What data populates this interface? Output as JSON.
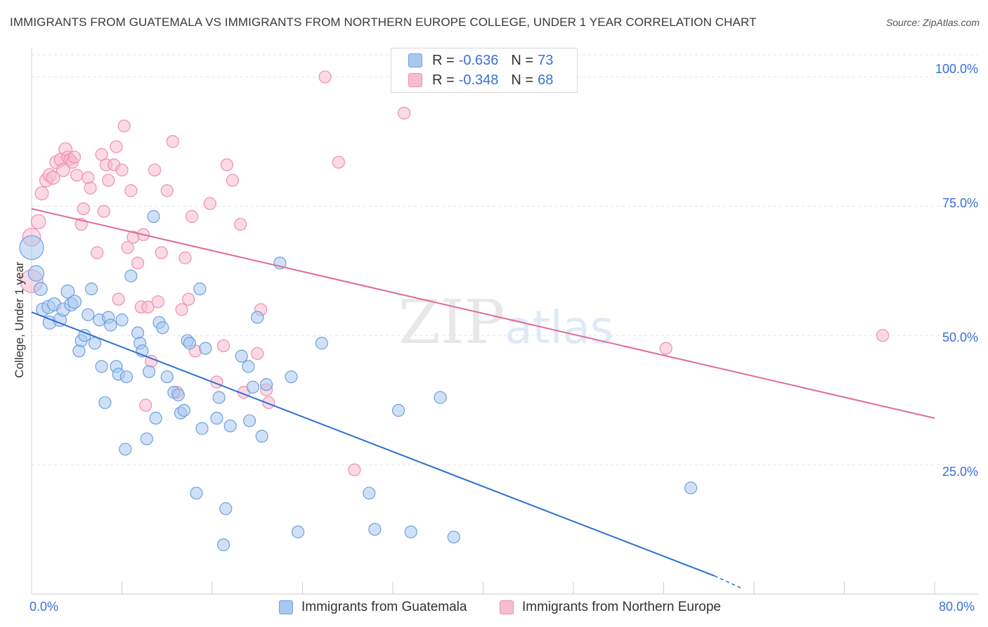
{
  "title": "IMMIGRANTS FROM GUATEMALA VS IMMIGRANTS FROM NORTHERN EUROPE COLLEGE, UNDER 1 YEAR CORRELATION CHART",
  "source": "Source: ZipAtlas.com",
  "watermark": "ZIPatlas",
  "colors": {
    "blue_fill": "#a9c8f0",
    "blue_stroke": "#6f9fe0",
    "blue_line": "#2f6fd0",
    "pink_fill": "#f7bcd0",
    "pink_stroke": "#ec8fb0",
    "pink_line": "#e06a98",
    "axis_text": "#3a6fd8",
    "grid": "#e6e6e6"
  },
  "legend": {
    "rows": [
      {
        "r_label": "R =",
        "r_value": "-0.636",
        "n_label": "N =",
        "n_value": "73"
      },
      {
        "r_label": "R =",
        "r_value": "-0.348",
        "n_label": "N =",
        "n_value": "68"
      }
    ]
  },
  "bottom_legend": [
    "Immigrants from Guatemala",
    "Immigrants from Northern Europe"
  ],
  "chart_data": {
    "type": "scatter",
    "title": "IMMIGRANTS FROM GUATEMALA VS IMMIGRANTS FROM NORTHERN EUROPE COLLEGE, UNDER 1 YEAR CORRELATION CHART",
    "xlabel": "",
    "ylabel": "College, Under 1 year",
    "xlim": [
      0,
      80
    ],
    "ylim": [
      0,
      104
    ],
    "x_tick_labels": [
      "0.0%",
      "80.0%"
    ],
    "y_tick_labels": [
      "25.0%",
      "50.0%",
      "75.0%",
      "100.0%"
    ],
    "y_ticks": [
      25,
      50,
      75,
      100
    ],
    "grid": "horizontal dashed",
    "legend_position": "top-center",
    "series": [
      {
        "name": "Immigrants from Guatemala",
        "color": "blue",
        "trend": {
          "x": [
            0,
            60.5
          ],
          "y": [
            54.5,
            3.5
          ],
          "dashed_extension_to": [
            63,
            1.0
          ]
        },
        "points": [
          [
            0.0,
            67.0,
            2
          ],
          [
            0.4,
            62.0,
            1.3
          ],
          [
            0.8,
            59.0,
            1.1
          ],
          [
            1.0,
            55.0,
            1.1
          ],
          [
            1.5,
            55.5,
            1.1
          ],
          [
            1.6,
            52.5,
            1.1
          ],
          [
            2.0,
            56.0,
            1.1
          ],
          [
            2.5,
            53.0,
            1.1
          ],
          [
            2.8,
            55.0,
            1.1
          ],
          [
            3.2,
            58.5,
            1.1
          ],
          [
            3.5,
            56.0,
            1.1
          ],
          [
            3.8,
            56.5,
            1.1
          ],
          [
            4.2,
            47.0,
            1.0
          ],
          [
            4.4,
            49.0,
            1.0
          ],
          [
            4.7,
            50.0,
            1.0
          ],
          [
            5.0,
            54.0,
            1.0
          ],
          [
            5.3,
            59.0,
            1.0
          ],
          [
            5.6,
            48.5,
            1.0
          ],
          [
            6.0,
            53.0,
            1.0
          ],
          [
            6.2,
            44.0,
            1.0
          ],
          [
            6.5,
            37.0,
            1.0
          ],
          [
            6.8,
            53.5,
            1.0
          ],
          [
            7.0,
            52.0,
            1.0
          ],
          [
            7.5,
            44.0,
            1.0
          ],
          [
            7.7,
            42.5,
            1.0
          ],
          [
            8.0,
            53.0,
            1.0
          ],
          [
            8.3,
            28.0,
            1.0
          ],
          [
            8.4,
            42.0,
            1.0
          ],
          [
            8.8,
            61.5,
            1.0
          ],
          [
            9.4,
            50.5,
            1.0
          ],
          [
            9.6,
            48.5,
            1.0
          ],
          [
            9.8,
            47.0,
            1.0
          ],
          [
            10.2,
            30.0,
            1.0
          ],
          [
            10.4,
            43.0,
            1.0
          ],
          [
            10.8,
            73.0,
            1.0
          ],
          [
            11.0,
            34.0,
            1.0
          ],
          [
            11.3,
            52.5,
            1.0
          ],
          [
            11.6,
            51.5,
            1.0
          ],
          [
            12.0,
            42.0,
            1.0
          ],
          [
            12.6,
            39.0,
            1.0
          ],
          [
            13.0,
            38.5,
            1.0
          ],
          [
            13.2,
            35.0,
            1.0
          ],
          [
            13.5,
            35.5,
            1.0
          ],
          [
            13.8,
            49.0,
            1.0
          ],
          [
            14.0,
            48.5,
            1.0
          ],
          [
            14.6,
            19.5,
            1.0
          ],
          [
            14.9,
            59.0,
            1.0
          ],
          [
            15.1,
            32.0,
            1.0
          ],
          [
            15.4,
            47.5,
            1.0
          ],
          [
            16.4,
            34.0,
            1.0
          ],
          [
            16.6,
            38.0,
            1.0
          ],
          [
            17.0,
            9.5,
            1.0
          ],
          [
            17.2,
            16.5,
            1.0
          ],
          [
            17.6,
            32.5,
            1.0
          ],
          [
            18.6,
            46.0,
            1.0
          ],
          [
            19.2,
            44.0,
            1.0
          ],
          [
            19.3,
            33.5,
            1.0
          ],
          [
            19.6,
            40.0,
            1.0
          ],
          [
            20.0,
            53.5,
            1.0
          ],
          [
            20.4,
            30.5,
            1.0
          ],
          [
            20.8,
            40.5,
            1.0
          ],
          [
            22.0,
            64.0,
            1.0
          ],
          [
            23.0,
            42.0,
            1.0
          ],
          [
            23.6,
            12.0,
            1.0
          ],
          [
            25.7,
            48.5,
            1.0
          ],
          [
            29.9,
            19.5,
            1.0
          ],
          [
            30.4,
            12.5,
            1.0
          ],
          [
            32.5,
            35.5,
            1.0
          ],
          [
            33.6,
            12.0,
            1.0
          ],
          [
            36.2,
            38.0,
            1.0
          ],
          [
            37.4,
            11.0,
            1.0
          ],
          [
            58.4,
            20.5,
            1.0
          ]
        ]
      },
      {
        "name": "Immigrants from Northern Europe",
        "color": "pink",
        "trend": {
          "x": [
            0,
            80
          ],
          "y": [
            74.5,
            34.0
          ]
        },
        "points": [
          [
            0.0,
            69.0,
            1.5
          ],
          [
            0.0,
            60.5,
            1.9
          ],
          [
            0.6,
            72.0,
            1.2
          ],
          [
            0.9,
            77.5,
            1.1
          ],
          [
            1.3,
            80.0,
            1.1
          ],
          [
            1.6,
            81.0,
            1.1
          ],
          [
            1.9,
            80.5,
            1.1
          ],
          [
            2.2,
            83.5,
            1.1
          ],
          [
            2.6,
            84.0,
            1.1
          ],
          [
            2.8,
            82.0,
            1.1
          ],
          [
            3.0,
            86.0,
            1.1
          ],
          [
            3.2,
            84.5,
            1.0
          ],
          [
            3.4,
            84.0,
            1.0
          ],
          [
            3.6,
            83.5,
            1.0
          ],
          [
            3.8,
            84.5,
            1.0
          ],
          [
            4.0,
            81.0,
            1.0
          ],
          [
            4.4,
            71.5,
            1.0
          ],
          [
            4.6,
            74.5,
            1.0
          ],
          [
            5.0,
            80.5,
            1.0
          ],
          [
            5.2,
            78.5,
            1.0
          ],
          [
            5.8,
            66.0,
            1.0
          ],
          [
            6.2,
            85.0,
            1.0
          ],
          [
            6.4,
            74.0,
            1.0
          ],
          [
            6.6,
            83.0,
            1.0
          ],
          [
            6.8,
            80.0,
            1.0
          ],
          [
            7.3,
            83.0,
            1.0
          ],
          [
            7.5,
            86.5,
            1.0
          ],
          [
            7.7,
            57.0,
            1.0
          ],
          [
            8.0,
            82.0,
            1.0
          ],
          [
            8.2,
            90.5,
            1.0
          ],
          [
            8.5,
            67.0,
            1.0
          ],
          [
            8.8,
            78.0,
            1.0
          ],
          [
            9.0,
            69.0,
            1.0
          ],
          [
            9.4,
            64.0,
            1.0
          ],
          [
            9.7,
            55.5,
            1.0
          ],
          [
            9.9,
            69.5,
            1.0
          ],
          [
            10.1,
            36.5,
            1.0
          ],
          [
            10.3,
            55.5,
            1.0
          ],
          [
            10.6,
            45.0,
            1.0
          ],
          [
            10.9,
            82.0,
            1.0
          ],
          [
            11.2,
            56.5,
            1.0
          ],
          [
            11.5,
            66.0,
            1.0
          ],
          [
            12.0,
            78.0,
            1.0
          ],
          [
            12.5,
            87.5,
            1.0
          ],
          [
            12.9,
            39.0,
            1.0
          ],
          [
            13.3,
            55.0,
            1.0
          ],
          [
            13.6,
            65.0,
            1.0
          ],
          [
            13.9,
            57.0,
            1.0
          ],
          [
            14.2,
            73.0,
            1.0
          ],
          [
            14.5,
            47.0,
            1.0
          ],
          [
            15.8,
            75.5,
            1.0
          ],
          [
            16.4,
            41.0,
            1.0
          ],
          [
            17.0,
            48.0,
            1.0
          ],
          [
            17.3,
            83.0,
            1.0
          ],
          [
            17.8,
            80.0,
            1.0
          ],
          [
            18.5,
            71.5,
            1.0
          ],
          [
            18.8,
            39.0,
            1.0
          ],
          [
            20.0,
            46.5,
            1.0
          ],
          [
            20.3,
            55.0,
            1.0
          ],
          [
            20.8,
            39.5,
            1.0
          ],
          [
            21.0,
            37.0,
            1.0
          ],
          [
            26.0,
            100.0,
            1.0
          ],
          [
            27.2,
            83.5,
            1.0
          ],
          [
            28.6,
            24.0,
            1.0
          ],
          [
            33.0,
            93.0,
            1.0
          ],
          [
            56.2,
            47.5,
            1.0
          ],
          [
            75.4,
            50.0,
            1.0
          ]
        ]
      }
    ]
  }
}
